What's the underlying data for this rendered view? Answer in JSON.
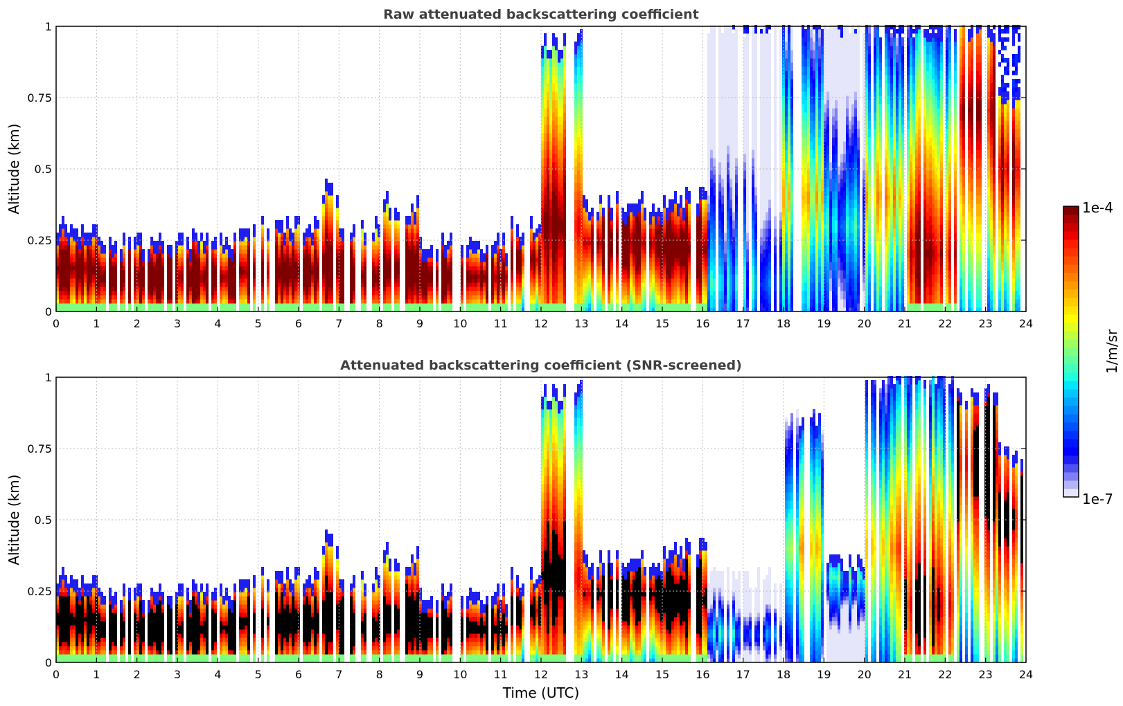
{
  "chart_data": [
    {
      "type": "heatmap",
      "title": "Raw attenuated backscattering coefficient",
      "xlabel": "",
      "ylabel": "Altitude (km)",
      "xlim": [
        0,
        24
      ],
      "ylim": [
        0,
        1
      ],
      "xticks": [
        "0",
        "1",
        "2",
        "3",
        "4",
        "5",
        "6",
        "7",
        "8",
        "9",
        "10",
        "11",
        "12",
        "13",
        "14",
        "15",
        "16",
        "17",
        "18",
        "19",
        "20",
        "21",
        "22",
        "23",
        "24"
      ],
      "yticks": [
        "0",
        "0.25",
        "0.5",
        "0.75",
        "1"
      ],
      "grid": true,
      "screened": false,
      "profiles": [
        {
          "t0": 0.0,
          "t1": 1.0,
          "layer_top": 0.3,
          "peak": 0.15,
          "intensity": 0.95,
          "noise_to": 0
        },
        {
          "t0": 1.0,
          "t1": 4.5,
          "layer_top": 0.25,
          "peak": 0.12,
          "intensity": 0.97,
          "noise_to": 0
        },
        {
          "t0": 4.5,
          "t1": 6.5,
          "layer_top": 0.3,
          "peak": 0.14,
          "intensity": 0.95,
          "noise_to": 0
        },
        {
          "t0": 6.5,
          "t1": 7.0,
          "layer_top": 0.42,
          "peak": 0.16,
          "intensity": 0.98,
          "noise_to": 0
        },
        {
          "t0": 7.0,
          "t1": 8.0,
          "layer_top": 0.3,
          "peak": 0.12,
          "intensity": 0.99,
          "noise_to": 0
        },
        {
          "t0": 8.0,
          "t1": 9.0,
          "layer_top": 0.38,
          "peak": 0.15,
          "intensity": 0.98,
          "noise_to": 0
        },
        {
          "t0": 9.0,
          "t1": 11.2,
          "layer_top": 0.24,
          "peak": 0.12,
          "intensity": 0.96,
          "noise_to": 0
        },
        {
          "t0": 11.2,
          "t1": 12.0,
          "layer_top": 0.3,
          "peak": 0.18,
          "intensity": 0.85,
          "noise_to": 0
        },
        {
          "t0": 12.0,
          "t1": 13.0,
          "layer_top": 0.95,
          "peak": 0.3,
          "intensity": 0.85,
          "noise_to": 0
        },
        {
          "t0": 13.0,
          "t1": 15.0,
          "layer_top": 0.38,
          "peak": 0.24,
          "intensity": 0.92,
          "noise_to": 0
        },
        {
          "t0": 15.0,
          "t1": 16.1,
          "layer_top": 0.4,
          "peak": 0.22,
          "intensity": 0.93,
          "noise_to": 0
        },
        {
          "t0": 16.1,
          "t1": 18.0,
          "layer_top": 1.0,
          "peak": 0.1,
          "intensity": 0.18,
          "noise_to": 1
        },
        {
          "t0": 18.0,
          "t1": 19.0,
          "layer_top": 1.0,
          "peak": 0.4,
          "intensity": 0.45,
          "noise_to": 1
        },
        {
          "t0": 19.0,
          "t1": 20.0,
          "layer_top": 1.0,
          "peak": 0.3,
          "intensity": 0.22,
          "noise_to": 1
        },
        {
          "t0": 20.0,
          "t1": 21.0,
          "layer_top": 1.0,
          "peak": 0.4,
          "intensity": 0.55,
          "noise_to": 1
        },
        {
          "t0": 21.0,
          "t1": 22.3,
          "layer_top": 1.0,
          "peak": 0.2,
          "intensity": 0.78,
          "noise_to": 1
        },
        {
          "t0": 22.3,
          "t1": 23.3,
          "layer_top": 1.0,
          "peak": 0.7,
          "intensity": 0.85,
          "noise_to": 1
        },
        {
          "t0": 23.3,
          "t1": 24.0,
          "layer_top": 0.75,
          "peak": 0.5,
          "intensity": 0.85,
          "noise_to": 1
        }
      ]
    },
    {
      "type": "heatmap",
      "title": "Attenuated backscattering coefficient (SNR-screened)",
      "xlabel": "Time (UTC)",
      "ylabel": "Altitude (km)",
      "xlim": [
        0,
        24
      ],
      "ylim": [
        0,
        1
      ],
      "xticks": [
        "0",
        "1",
        "2",
        "3",
        "4",
        "5",
        "6",
        "7",
        "8",
        "9",
        "10",
        "11",
        "12",
        "13",
        "14",
        "15",
        "16",
        "17",
        "18",
        "19",
        "20",
        "21",
        "22",
        "23",
        "24"
      ],
      "yticks": [
        "0",
        "0.25",
        "0.5",
        "0.75",
        "1"
      ],
      "grid": true,
      "screened": true,
      "profiles": [
        {
          "t0": 0.0,
          "t1": 1.0,
          "layer_top": 0.3,
          "peak": 0.15,
          "intensity": 0.95,
          "noise_to": 0
        },
        {
          "t0": 1.0,
          "t1": 4.5,
          "layer_top": 0.25,
          "peak": 0.12,
          "intensity": 0.97,
          "noise_to": 0
        },
        {
          "t0": 4.5,
          "t1": 6.5,
          "layer_top": 0.3,
          "peak": 0.14,
          "intensity": 0.95,
          "noise_to": 0
        },
        {
          "t0": 6.5,
          "t1": 7.0,
          "layer_top": 0.42,
          "peak": 0.16,
          "intensity": 0.98,
          "noise_to": 0
        },
        {
          "t0": 7.0,
          "t1": 8.0,
          "layer_top": 0.3,
          "peak": 0.12,
          "intensity": 0.99,
          "noise_to": 0
        },
        {
          "t0": 8.0,
          "t1": 9.0,
          "layer_top": 0.38,
          "peak": 0.15,
          "intensity": 0.98,
          "noise_to": 0
        },
        {
          "t0": 9.0,
          "t1": 11.2,
          "layer_top": 0.24,
          "peak": 0.12,
          "intensity": 0.96,
          "noise_to": 0
        },
        {
          "t0": 11.2,
          "t1": 12.0,
          "layer_top": 0.3,
          "peak": 0.18,
          "intensity": 0.85,
          "noise_to": 0
        },
        {
          "t0": 12.0,
          "t1": 13.0,
          "layer_top": 0.95,
          "peak": 0.3,
          "intensity": 0.85,
          "noise_to": 0
        },
        {
          "t0": 13.0,
          "t1": 15.0,
          "layer_top": 0.36,
          "peak": 0.24,
          "intensity": 0.92,
          "noise_to": 0
        },
        {
          "t0": 15.0,
          "t1": 16.1,
          "layer_top": 0.4,
          "peak": 0.22,
          "intensity": 0.93,
          "noise_to": 0
        },
        {
          "t0": 16.1,
          "t1": 18.0,
          "layer_top": 0.3,
          "peak": 0.1,
          "intensity": 0.18,
          "noise_to": 0
        },
        {
          "t0": 18.0,
          "t1": 19.0,
          "layer_top": 0.85,
          "peak": 0.4,
          "intensity": 0.45,
          "noise_to": 0
        },
        {
          "t0": 19.0,
          "t1": 20.0,
          "layer_top": 0.35,
          "peak": 0.3,
          "intensity": 0.22,
          "noise_to": 0
        },
        {
          "t0": 20.0,
          "t1": 21.0,
          "layer_top": 1.0,
          "peak": 0.4,
          "intensity": 0.55,
          "noise_to": 0
        },
        {
          "t0": 21.0,
          "t1": 22.3,
          "layer_top": 1.0,
          "peak": 0.2,
          "intensity": 0.78,
          "noise_to": 0
        },
        {
          "t0": 22.3,
          "t1": 23.3,
          "layer_top": 0.95,
          "peak": 0.7,
          "intensity": 0.85,
          "noise_to": 0
        },
        {
          "t0": 23.3,
          "t1": 24.0,
          "layer_top": 0.75,
          "peak": 0.5,
          "intensity": 0.85,
          "noise_to": 0
        }
      ]
    }
  ],
  "colorbar": {
    "label": "1/m/sr",
    "max_label": "1e-4",
    "min_label": "1e-7",
    "range": [
      1e-07,
      0.0001
    ],
    "colormap": "jet",
    "colors": [
      "#e6e6fa",
      "#b4b4f5",
      "#7f7ff5",
      "#5050f0",
      "#1e1ef0",
      "#0000ff",
      "#0014ff",
      "#0032ff",
      "#0050ff",
      "#006eff",
      "#008cff",
      "#00a8ff",
      "#00c8ff",
      "#00e6ff",
      "#20ffe0",
      "#40ffbf",
      "#60ff9f",
      "#80ff80",
      "#9fff60",
      "#bfff40",
      "#dfff20",
      "#ffff00",
      "#ffe600",
      "#ffcc00",
      "#ffb300",
      "#ff9900",
      "#ff8000",
      "#ff6600",
      "#ff4d00",
      "#ff3300",
      "#ff1a00",
      "#ee0000",
      "#cc0000",
      "#aa0000",
      "#800000"
    ],
    "saturation_color": "#000000"
  }
}
